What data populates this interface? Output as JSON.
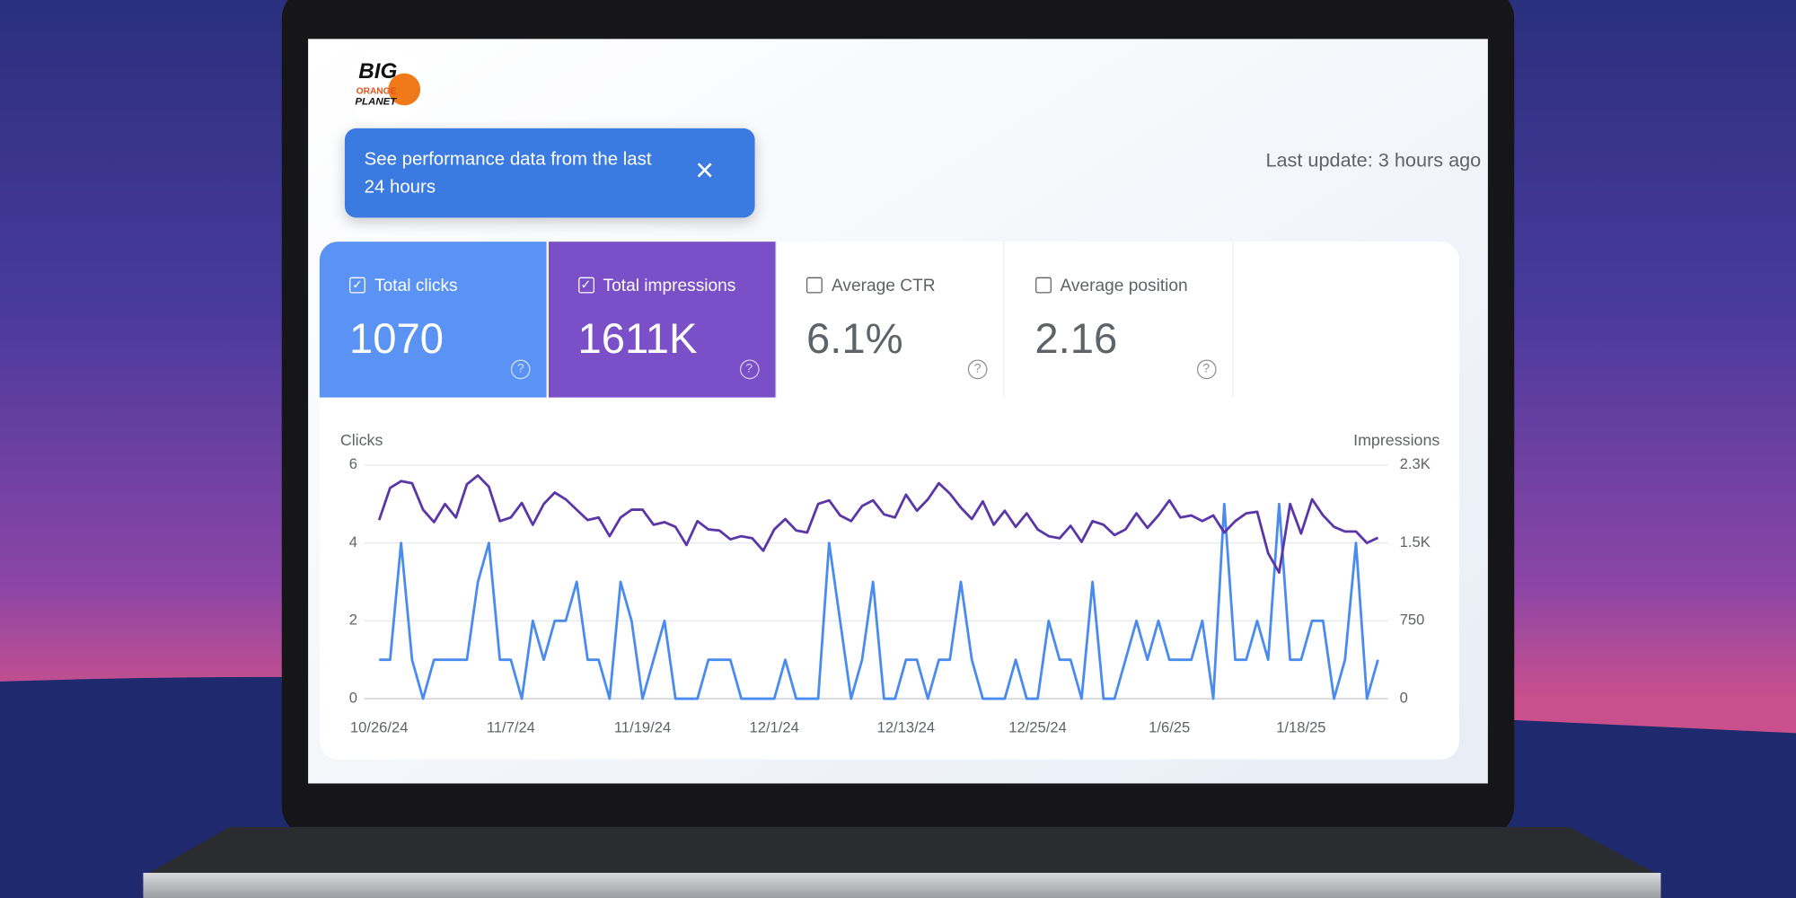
{
  "logo": {
    "lines": [
      "BIG",
      "ORANGE",
      "PLANET"
    ]
  },
  "banner": {
    "text": "See performance data from the last 24 hours"
  },
  "last_update": "Last update: 3 hours ago",
  "metrics": [
    {
      "label": "Total clicks",
      "value": "1070",
      "checked": true,
      "color": "#5a93f3"
    },
    {
      "label": "Total impressions",
      "value": "1611K",
      "checked": true,
      "color": "#7a4fc7"
    },
    {
      "label": "Average CTR",
      "value": "6.1%",
      "checked": false,
      "color": "#ffffff"
    },
    {
      "label": "Average position",
      "value": "2.16",
      "checked": false,
      "color": "#ffffff"
    }
  ],
  "chart_data": {
    "type": "line",
    "y_label": "Clicks",
    "y2_label": "Impressions",
    "grid": true,
    "categories": [
      "10/26/24",
      null,
      null,
      null,
      null,
      null,
      null,
      null,
      null,
      null,
      null,
      null,
      "11/7/24",
      null,
      null,
      null,
      null,
      null,
      null,
      null,
      null,
      null,
      null,
      null,
      "11/19/24",
      null,
      null,
      null,
      null,
      null,
      null,
      null,
      null,
      null,
      null,
      null,
      "12/1/24",
      null,
      null,
      null,
      null,
      null,
      null,
      null,
      null,
      null,
      null,
      null,
      "12/13/24",
      null,
      null,
      null,
      null,
      null,
      null,
      null,
      null,
      null,
      null,
      null,
      "12/25/24",
      null,
      null,
      null,
      null,
      null,
      null,
      null,
      null,
      null,
      null,
      null,
      "1/6/25",
      null,
      null,
      null,
      null,
      null,
      null,
      null,
      null,
      null,
      null,
      null,
      "1/18/25",
      null,
      null,
      null,
      null,
      null,
      null,
      null
    ],
    "ylim": [
      0,
      6
    ],
    "yticks": [
      0,
      2,
      4,
      6
    ],
    "y2lim": [
      0,
      2250
    ],
    "y2ticks": [
      0,
      750,
      {
        "value": 1500,
        "label": "1.5K"
      },
      {
        "value": 2250,
        "label": "2.3K"
      }
    ],
    "series": [
      {
        "name": "Clicks",
        "color": "#4a8bee",
        "values": [
          1,
          1,
          4,
          1,
          0,
          1,
          1,
          1,
          1,
          3,
          4,
          1,
          1,
          0,
          2,
          1,
          2,
          2,
          3,
          1,
          1,
          0,
          3,
          2,
          0,
          1,
          2,
          0,
          0,
          0,
          1,
          1,
          1,
          0,
          0,
          0,
          0,
          1,
          0,
          0,
          0,
          4,
          2,
          0,
          1,
          3,
          0,
          0,
          1,
          1,
          0,
          1,
          1,
          3,
          1,
          0,
          0,
          0,
          1,
          0,
          0,
          2,
          1,
          1,
          0,
          3,
          0,
          0,
          1,
          2,
          1,
          2,
          1,
          1,
          1,
          2,
          0,
          5,
          1,
          1,
          2,
          1,
          5,
          1,
          1,
          2,
          2,
          0,
          1,
          4,
          0,
          1
        ]
      },
      {
        "name": "Impressions",
        "color": "#5b36a6",
        "axis": "y2",
        "values": [
          1720,
          2030,
          2095,
          2075,
          1820,
          1700,
          1875,
          1745,
          2065,
          2150,
          2040,
          1710,
          1745,
          1885,
          1675,
          1875,
          1985,
          1920,
          1820,
          1720,
          1745,
          1565,
          1745,
          1820,
          1820,
          1675,
          1700,
          1655,
          1480,
          1710,
          1630,
          1620,
          1535,
          1565,
          1545,
          1425,
          1630,
          1730,
          1620,
          1600,
          1875,
          1910,
          1765,
          1710,
          1855,
          1910,
          1775,
          1745,
          1965,
          1810,
          1920,
          2075,
          1975,
          1840,
          1730,
          1900,
          1675,
          1810,
          1655,
          1785,
          1630,
          1565,
          1545,
          1665,
          1510,
          1710,
          1675,
          1575,
          1630,
          1785,
          1645,
          1765,
          1910,
          1745,
          1765,
          1710,
          1765,
          1600,
          1710,
          1785,
          1800,
          1400,
          1215,
          1875,
          1590,
          1920,
          1765,
          1655,
          1610,
          1610,
          1500,
          1550
        ]
      }
    ]
  }
}
